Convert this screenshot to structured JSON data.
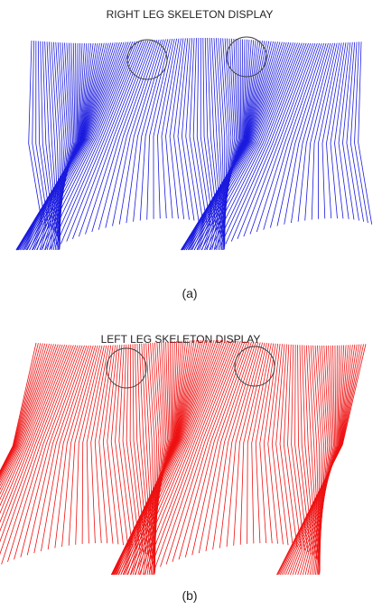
{
  "panel_a": {
    "title": "RIGHT LEG SKELETON DISPLAY",
    "caption": "(a)"
  },
  "panel_b": {
    "title": "LEFT LEG SKELETON DISPLAY",
    "caption": "(b)"
  }
}
